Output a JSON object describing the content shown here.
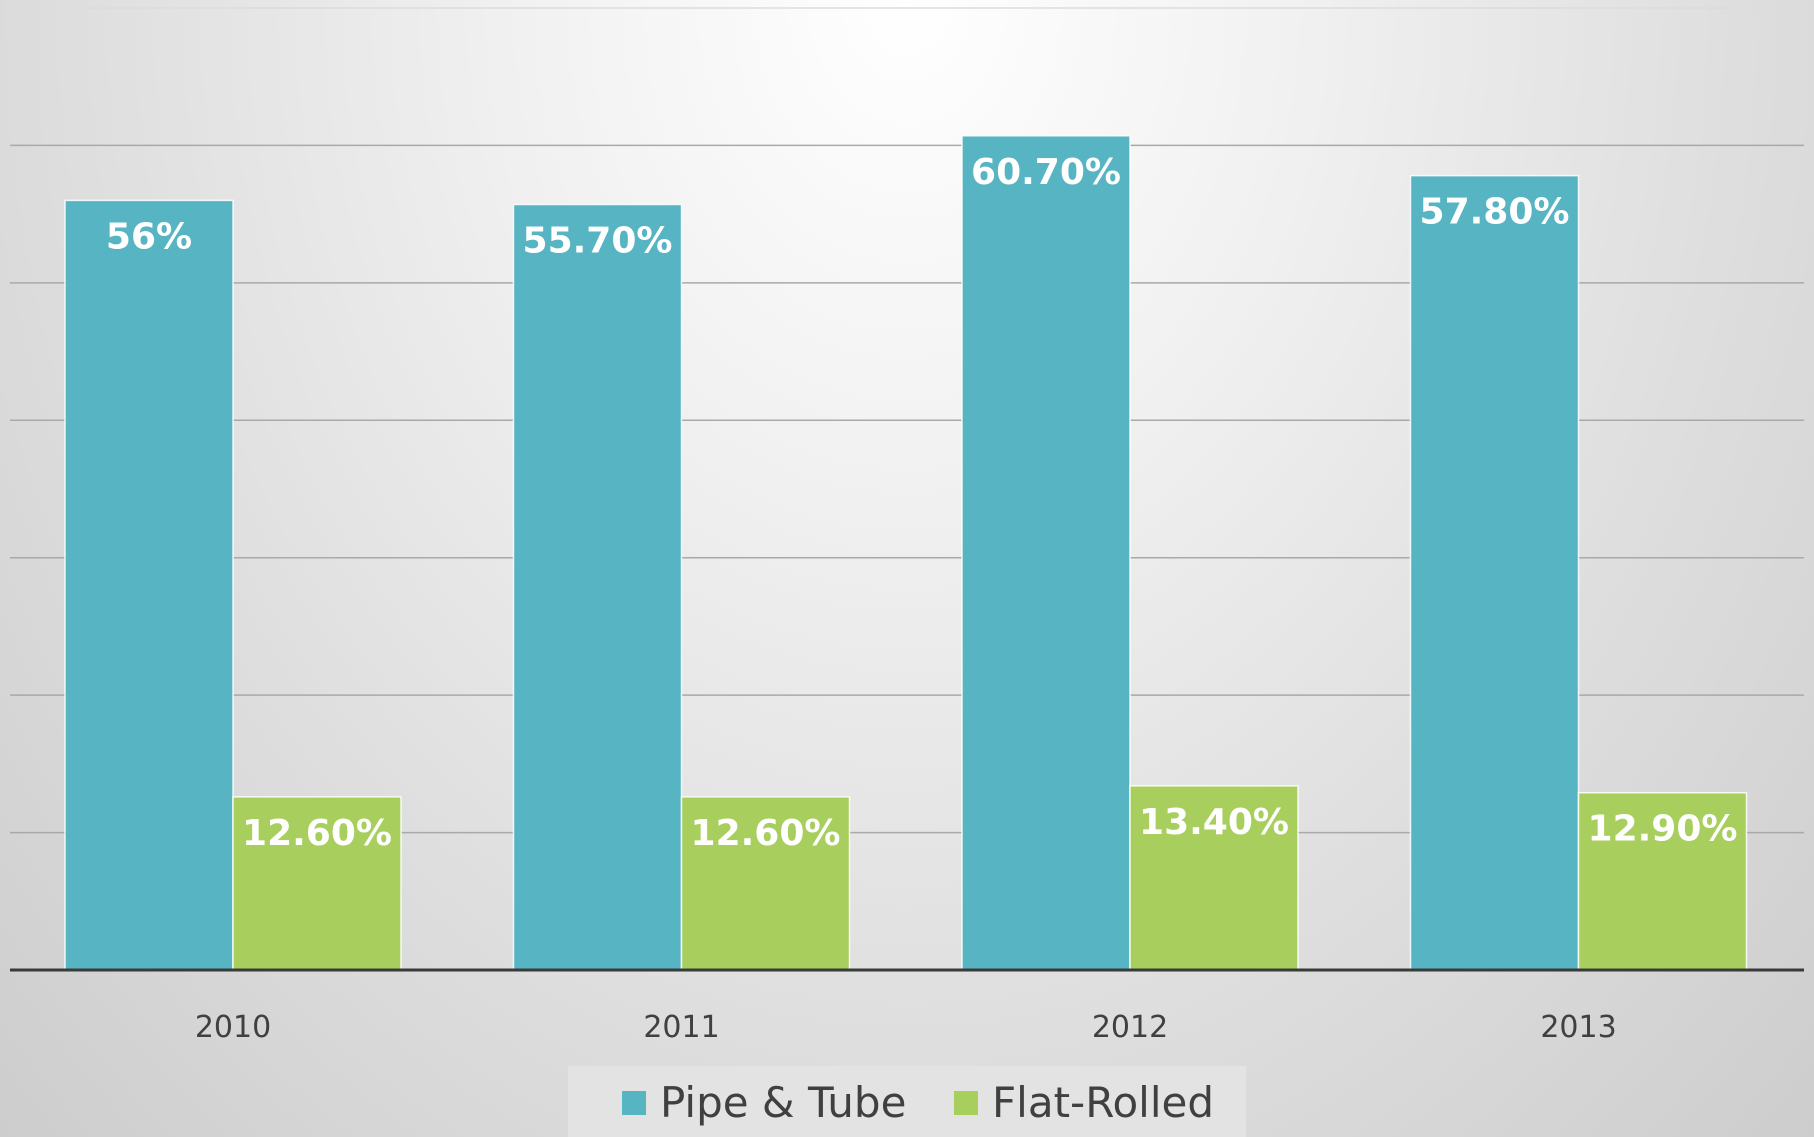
{
  "chart_data": {
    "type": "bar",
    "categories": [
      "2010",
      "2011",
      "2012",
      "2013"
    ],
    "series": [
      {
        "name": "Pipe & Tube",
        "values": [
          56.0,
          55.7,
          60.7,
          57.8
        ],
        "labels": [
          "56%",
          "55.70%",
          "60.70%",
          "57.80%"
        ],
        "color": "#56b4c3"
      },
      {
        "name": "Flat-Rolled",
        "values": [
          12.6,
          12.6,
          13.4,
          12.9
        ],
        "labels": [
          "12.60%",
          "12.60%",
          "13.40%",
          "12.90%"
        ],
        "color": "#a8cf5e"
      }
    ],
    "ylim": [
      0,
      70
    ],
    "y_gridlines": [
      10,
      20,
      30,
      40,
      50,
      60,
      70
    ],
    "y_tick_labels": false,
    "grid": true,
    "legend": "bottom-center",
    "title": "",
    "xlabel": "",
    "ylabel": ""
  }
}
